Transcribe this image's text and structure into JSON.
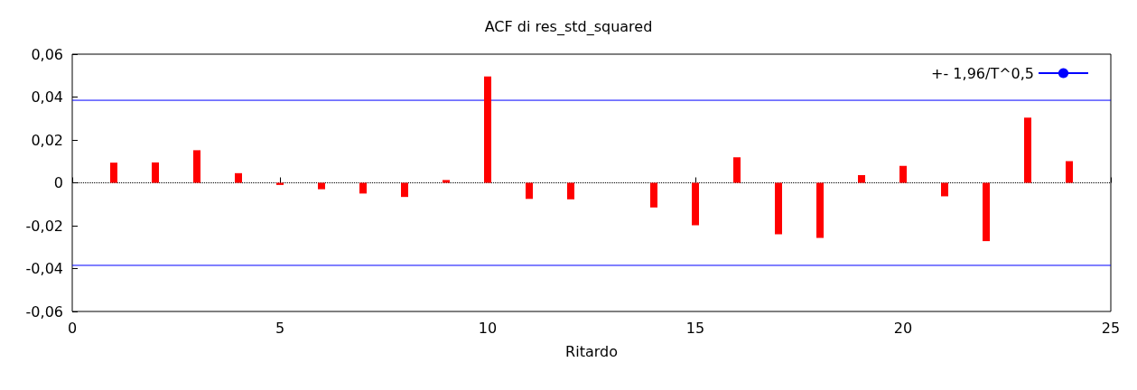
{
  "chart_data": {
    "type": "bar",
    "title": "ACF di res_std_squared",
    "xlabel": "Ritardo",
    "x": [
      1,
      2,
      3,
      4,
      5,
      6,
      7,
      8,
      9,
      10,
      11,
      12,
      13,
      14,
      15,
      16,
      17,
      18,
      19,
      20,
      21,
      22,
      23,
      24
    ],
    "values": [
      0.0094,
      0.0095,
      0.0152,
      0.0045,
      -0.001,
      -0.003,
      -0.005,
      -0.0066,
      0.0013,
      0.0496,
      -0.0075,
      -0.0077,
      null,
      -0.0115,
      -0.0198,
      0.0119,
      -0.024,
      -0.0257,
      0.0036,
      0.0079,
      -0.0063,
      -0.0272,
      0.0304,
      0.0101
    ],
    "color": "#ff0000",
    "xlim": [
      0,
      25
    ],
    "xticks": [
      0,
      5,
      10,
      15,
      20,
      25
    ],
    "ylim": [
      -0.06,
      0.06
    ],
    "yticks": [
      {
        "value": -0.06,
        "label": "-0,06"
      },
      {
        "value": -0.04,
        "label": "-0,04"
      },
      {
        "value": -0.02,
        "label": "-0,02"
      },
      0,
      {
        "value": 0.02,
        "label": "0,02"
      },
      {
        "value": 0.04,
        "label": "0,04"
      },
      {
        "value": 0.06,
        "label": "0,06"
      }
    ],
    "ref_lines": [
      {
        "axis": "y",
        "value": 0.0385,
        "label": "+- 1,96/T^0,5",
        "color": "#0000ff",
        "line_style": "solid"
      },
      {
        "axis": "y",
        "value": -0.0385,
        "color": "#0000ff",
        "line_style": "solid"
      },
      {
        "axis": "y",
        "value": 0,
        "color": "#000000",
        "line_style": "dotted"
      }
    ],
    "grid": false,
    "legend": "top right"
  }
}
